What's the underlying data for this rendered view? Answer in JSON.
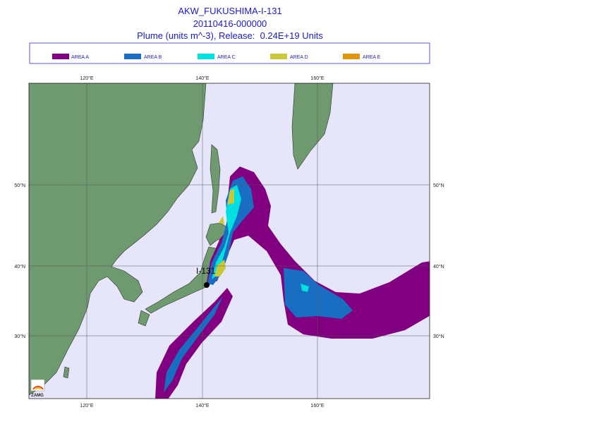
{
  "header": {
    "title": "AKW_FUKUSHIMA-I-131",
    "date": "20110416-000000",
    "subtitle": "Plume (units m^-3), Release:  0.24E+19 Units"
  },
  "legend": {
    "items": [
      {
        "label": "AREA A",
        "color": "#800080"
      },
      {
        "label": "AREA B",
        "color": "#1a6ec2"
      },
      {
        "label": "AREA C",
        "color": "#00e0e0"
      },
      {
        "label": "AREA D",
        "color": "#c8c83a"
      },
      {
        "label": "AREA E",
        "color": "#e0960a"
      }
    ]
  },
  "map": {
    "top_labels": [
      "120°E",
      "140°E",
      "160°E"
    ],
    "bottom_labels": [
      "120°E",
      "140°E",
      "160°E"
    ],
    "left_labels": [
      "50°N",
      "40°N",
      "30°N"
    ],
    "right_labels": [
      "50°N",
      "40°N",
      "30°N"
    ],
    "source_label": "I-131",
    "logo": "ZAMG"
  }
}
